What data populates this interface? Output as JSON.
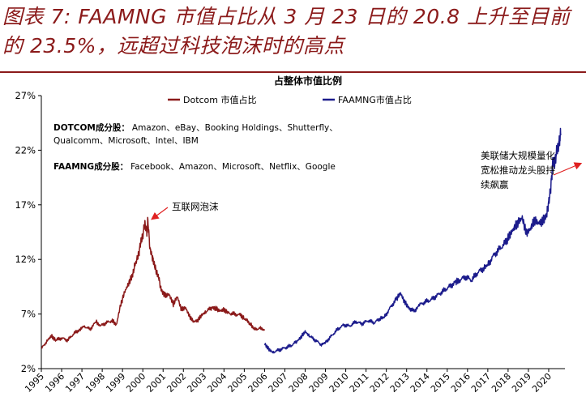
{
  "headline": {
    "line1": "图表 7: FAAMNG 市值占比从 3 月 23 日的 20.8 上升至目前",
    "line2": "的 23.5%，远超过科技泡沫时的高点"
  },
  "colors": {
    "dotcom": "#8b1a1a",
    "faamng": "#1c1c8c",
    "accent": "#8b1a1a",
    "arrow": "#e02020"
  },
  "chart_data": {
    "type": "line",
    "title": "占整体市值比例",
    "xlabel": "",
    "ylabel": "",
    "x_ticks": [
      "1995",
      "1996",
      "1997",
      "1998",
      "1999",
      "2000",
      "2001",
      "2002",
      "2003",
      "2004",
      "2005",
      "2006",
      "2007",
      "2008",
      "2009",
      "2010",
      "2011",
      "2012",
      "2013",
      "2014",
      "2015",
      "2016",
      "2017",
      "2018",
      "2019",
      "2020"
    ],
    "y_ticks": [
      "2%",
      "7%",
      "12%",
      "17%",
      "22%",
      "27%"
    ],
    "ylim": [
      2,
      27
    ],
    "xlim": [
      1995.0,
      2020.8
    ],
    "grid": false,
    "legend_position": "top",
    "series": [
      {
        "name": "Dotcom 市值占比",
        "points": [
          [
            1995.0,
            3.8
          ],
          [
            1995.3,
            4.6
          ],
          [
            1995.5,
            5.0
          ],
          [
            1995.7,
            4.6
          ],
          [
            1996.0,
            4.8
          ],
          [
            1996.3,
            4.6
          ],
          [
            1996.6,
            5.2
          ],
          [
            1996.9,
            5.6
          ],
          [
            1997.1,
            5.9
          ],
          [
            1997.4,
            5.6
          ],
          [
            1997.7,
            6.3
          ],
          [
            1997.9,
            5.9
          ],
          [
            1998.2,
            6.2
          ],
          [
            1998.5,
            6.4
          ],
          [
            1998.7,
            6.0
          ],
          [
            1998.9,
            7.8
          ],
          [
            1999.1,
            9.0
          ],
          [
            1999.3,
            9.8
          ],
          [
            1999.5,
            10.6
          ],
          [
            1999.6,
            11.4
          ],
          [
            1999.8,
            12.5
          ],
          [
            1999.9,
            13.6
          ],
          [
            2000.0,
            14.2
          ],
          [
            2000.1,
            15.3
          ],
          [
            2000.2,
            14.5
          ],
          [
            2000.25,
            15.6
          ],
          [
            2000.35,
            13.0
          ],
          [
            2000.5,
            12.0
          ],
          [
            2000.6,
            11.3
          ],
          [
            2000.8,
            10.2
          ],
          [
            2000.9,
            9.2
          ],
          [
            2001.1,
            8.7
          ],
          [
            2001.3,
            8.8
          ],
          [
            2001.5,
            7.9
          ],
          [
            2001.7,
            8.6
          ],
          [
            2001.9,
            7.4
          ],
          [
            2002.1,
            7.6
          ],
          [
            2002.3,
            6.8
          ],
          [
            2002.5,
            6.3
          ],
          [
            2002.7,
            6.4
          ],
          [
            2002.9,
            6.9
          ],
          [
            2003.1,
            7.2
          ],
          [
            2003.4,
            7.6
          ],
          [
            2003.6,
            7.5
          ],
          [
            2003.8,
            7.3
          ],
          [
            2004.0,
            7.4
          ],
          [
            2004.2,
            7.1
          ],
          [
            2004.5,
            7.0
          ],
          [
            2004.8,
            6.9
          ],
          [
            2005.0,
            6.6
          ],
          [
            2005.3,
            6.1
          ],
          [
            2005.5,
            5.6
          ],
          [
            2005.8,
            5.7
          ],
          [
            2006.0,
            5.5
          ]
        ]
      },
      {
        "name": "FAAMNG市值占比",
        "points": [
          [
            2006.0,
            4.3
          ],
          [
            2006.2,
            3.8
          ],
          [
            2006.4,
            3.5
          ],
          [
            2006.7,
            3.7
          ],
          [
            2007.0,
            3.9
          ],
          [
            2007.3,
            4.1
          ],
          [
            2007.6,
            4.5
          ],
          [
            2007.8,
            4.9
          ],
          [
            2008.0,
            5.4
          ],
          [
            2008.2,
            5.0
          ],
          [
            2008.5,
            4.6
          ],
          [
            2008.8,
            4.2
          ],
          [
            2009.0,
            4.4
          ],
          [
            2009.3,
            5.0
          ],
          [
            2009.6,
            5.6
          ],
          [
            2009.9,
            6.0
          ],
          [
            2010.2,
            5.9
          ],
          [
            2010.5,
            6.3
          ],
          [
            2010.8,
            6.1
          ],
          [
            2011.1,
            6.4
          ],
          [
            2011.4,
            6.2
          ],
          [
            2011.7,
            6.6
          ],
          [
            2011.9,
            6.7
          ],
          [
            2012.2,
            7.6
          ],
          [
            2012.5,
            8.4
          ],
          [
            2012.7,
            8.9
          ],
          [
            2012.9,
            8.1
          ],
          [
            2013.1,
            7.6
          ],
          [
            2013.4,
            7.2
          ],
          [
            2013.6,
            7.8
          ],
          [
            2013.9,
            8.1
          ],
          [
            2014.2,
            8.3
          ],
          [
            2014.5,
            8.7
          ],
          [
            2014.8,
            9.1
          ],
          [
            2015.1,
            9.5
          ],
          [
            2015.4,
            9.9
          ],
          [
            2015.6,
            10.1
          ],
          [
            2015.9,
            10.4
          ],
          [
            2016.2,
            10.1
          ],
          [
            2016.5,
            10.8
          ],
          [
            2016.8,
            11.2
          ],
          [
            2017.0,
            11.5
          ],
          [
            2017.3,
            12.4
          ],
          [
            2017.6,
            13.0
          ],
          [
            2017.9,
            13.6
          ],
          [
            2018.1,
            14.3
          ],
          [
            2018.3,
            14.9
          ],
          [
            2018.5,
            15.4
          ],
          [
            2018.7,
            15.8
          ],
          [
            2018.9,
            14.4
          ],
          [
            2019.1,
            14.8
          ],
          [
            2019.3,
            15.6
          ],
          [
            2019.5,
            15.3
          ],
          [
            2019.7,
            15.5
          ],
          [
            2019.9,
            16.1
          ],
          [
            2020.0,
            17.2
          ],
          [
            2020.1,
            18.5
          ],
          [
            2020.2,
            20.8
          ],
          [
            2020.3,
            20.9
          ],
          [
            2020.4,
            21.9
          ],
          [
            2020.5,
            22.6
          ],
          [
            2020.6,
            23.5
          ]
        ]
      }
    ],
    "annotations": [
      {
        "id": "dotcom_group",
        "label": "DOTCOM成分股：",
        "text": "Amazon、eBay、Booking Holdings、Shutterfly、"
      },
      {
        "id": "dotcom_group_line2",
        "text": "Qualcomm、Microsoft、Intel、IBM"
      },
      {
        "id": "faamng_group",
        "label": "FAAMNG成分股：",
        "text": "Facebook、Amazon、Microsoft、Netflix、Google"
      },
      {
        "id": "bubble",
        "text": "互联网泡沫"
      },
      {
        "id": "us_driver",
        "lines": [
          "美联储大规模量化",
          "宽松推动龙头股持",
          "续飙赢"
        ]
      }
    ]
  }
}
